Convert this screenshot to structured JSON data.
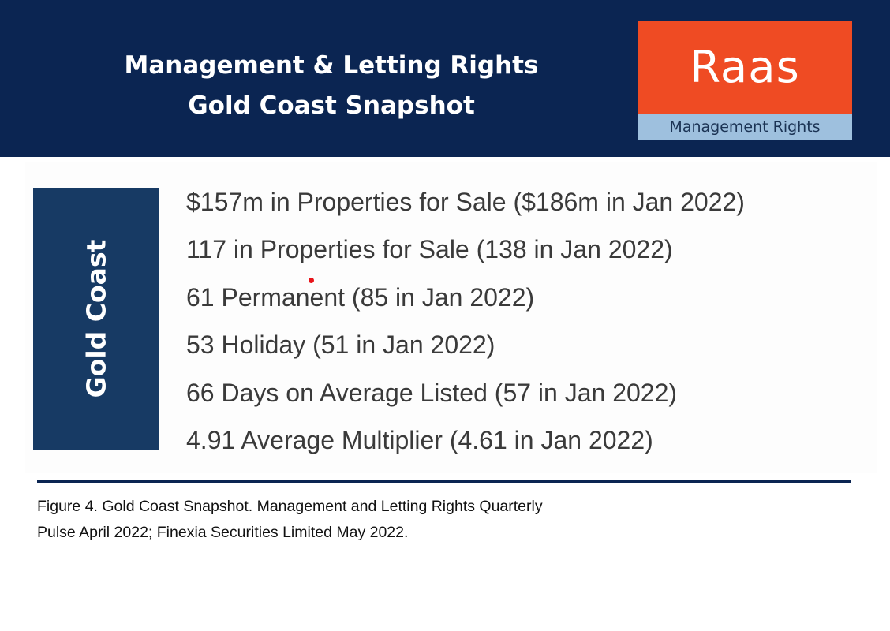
{
  "header": {
    "title_lines": [
      "Management & Letting Rights",
      "Gold Coast Snapshot"
    ],
    "logo": {
      "brand": "Raas",
      "tagline": "Management Rights"
    }
  },
  "figure": {
    "side_label": "Gold Coast",
    "stats": [
      "$157m in Properties for Sale ($186m in Jan 2022)",
      "117 in Properties for Sale (138 in Jan 2022)",
      "61 Permanent (85 in Jan 2022)",
      "53 Holiday (51 in Jan 2022)",
      "66 Days on Average Listed (57 in Jan 2022)",
      "4.91 Average Multiplier (4.61 in Jan 2022)"
    ]
  },
  "caption": {
    "lines": [
      "Figure 4. Gold Coast Snapshot. Management and Letting Rights Quarterly",
      "Pulse April 2022; Finexia Securities Limited May 2022."
    ]
  },
  "colors": {
    "navy": "#0b2552",
    "orange": "#ef4b23",
    "light_blue": "#9ec0de",
    "side_panel": "#173a64"
  }
}
